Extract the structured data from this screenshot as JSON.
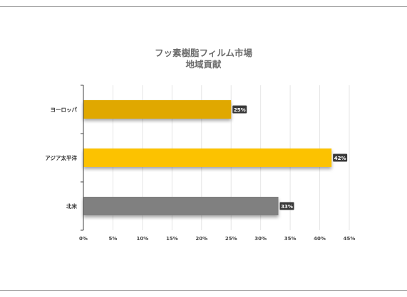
{
  "chart_data": {
    "type": "bar",
    "orientation": "horizontal",
    "title": [
      "フッ素樹脂フィルム市場",
      "地域貢献"
    ],
    "xlabel": "",
    "ylabel": "",
    "categories": [
      "ヨーロッパ",
      "アジア太平洋",
      "北米"
    ],
    "values": [
      25,
      42,
      33
    ],
    "data_labels": [
      "25%",
      "42%",
      "33%"
    ],
    "colors": [
      "#e0a800",
      "#fcc200",
      "#808080"
    ],
    "xlim": [
      0,
      45
    ],
    "x_ticks": [
      "0%",
      "5%",
      "10%",
      "15%",
      "20%",
      "25%",
      "30%",
      "35%",
      "40%",
      "45%"
    ],
    "grid": true,
    "legend": "none"
  }
}
